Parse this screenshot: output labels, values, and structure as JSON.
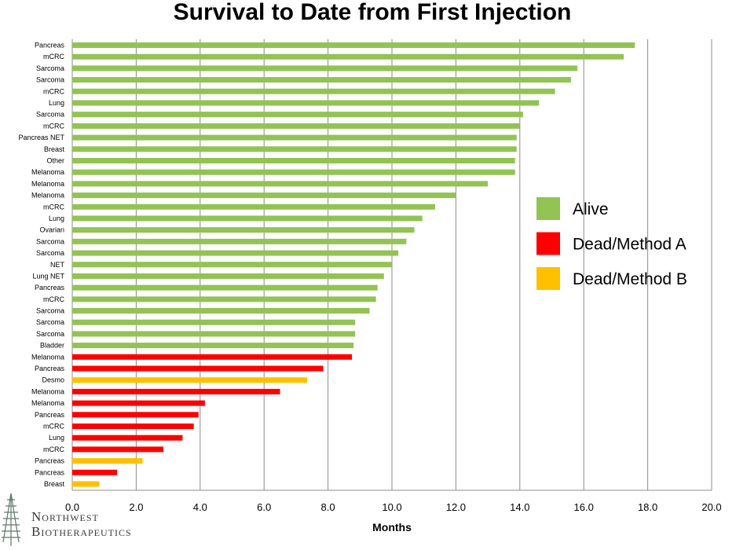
{
  "chart_data": {
    "type": "bar",
    "orientation": "horizontal",
    "title": "Survival to Date from First Injection",
    "xlabel": "Months",
    "ylabel": "",
    "xlim": [
      0,
      20
    ],
    "xticks": [
      "0.0",
      "2.0",
      "4.0",
      "6.0",
      "8.0",
      "10.0",
      "12.0",
      "14.0",
      "16.0",
      "18.0",
      "20.0"
    ],
    "grid": "vertical",
    "legend_position": "right",
    "legend": [
      {
        "label": "Alive",
        "color": "#92c353"
      },
      {
        "label": "Dead/Method A",
        "color": "#ff0000"
      },
      {
        "label": "Dead/Method B",
        "color": "#ffc000"
      }
    ],
    "bars": [
      {
        "label": "Pancreas",
        "value": 17.6,
        "status": "Alive"
      },
      {
        "label": "mCRC",
        "value": 17.25,
        "status": "Alive"
      },
      {
        "label": "Sarcoma",
        "value": 15.8,
        "status": "Alive"
      },
      {
        "label": "Sarcoma",
        "value": 15.6,
        "status": "Alive"
      },
      {
        "label": "mCRC",
        "value": 15.1,
        "status": "Alive"
      },
      {
        "label": "Lung",
        "value": 14.6,
        "status": "Alive"
      },
      {
        "label": "Sarcoma",
        "value": 14.1,
        "status": "Alive"
      },
      {
        "label": "mCRC",
        "value": 14.0,
        "status": "Alive"
      },
      {
        "label": "Pancreas NET",
        "value": 13.9,
        "status": "Alive"
      },
      {
        "label": "Breast",
        "value": 13.9,
        "status": "Alive"
      },
      {
        "label": "Other",
        "value": 13.85,
        "status": "Alive"
      },
      {
        "label": "Melanoma",
        "value": 13.85,
        "status": "Alive"
      },
      {
        "label": "Melanoma",
        "value": 13.0,
        "status": "Alive"
      },
      {
        "label": "Melanoma",
        "value": 12.0,
        "status": "Alive"
      },
      {
        "label": "mCRC",
        "value": 11.35,
        "status": "Alive"
      },
      {
        "label": "Lung",
        "value": 10.95,
        "status": "Alive"
      },
      {
        "label": "Ovarian",
        "value": 10.7,
        "status": "Alive"
      },
      {
        "label": "Sarcoma",
        "value": 10.45,
        "status": "Alive"
      },
      {
        "label": "Sarcoma",
        "value": 10.2,
        "status": "Alive"
      },
      {
        "label": "NET",
        "value": 10.0,
        "status": "Alive"
      },
      {
        "label": "Lung NET",
        "value": 9.75,
        "status": "Alive"
      },
      {
        "label": "Pancreas",
        "value": 9.55,
        "status": "Alive"
      },
      {
        "label": "mCRC",
        "value": 9.5,
        "status": "Alive"
      },
      {
        "label": "Sarcoma",
        "value": 9.3,
        "status": "Alive"
      },
      {
        "label": "Sarcoma",
        "value": 8.85,
        "status": "Alive"
      },
      {
        "label": "Sarcoma",
        "value": 8.85,
        "status": "Alive"
      },
      {
        "label": "Bladder",
        "value": 8.8,
        "status": "Alive"
      },
      {
        "label": "Melanoma",
        "value": 8.75,
        "status": "Dead/Method A"
      },
      {
        "label": "Pancreas",
        "value": 7.85,
        "status": "Dead/Method A"
      },
      {
        "label": "Desmo",
        "value": 7.35,
        "status": "Dead/Method B"
      },
      {
        "label": "Melanoma",
        "value": 6.5,
        "status": "Dead/Method A"
      },
      {
        "label": "Melanoma",
        "value": 4.15,
        "status": "Dead/Method A"
      },
      {
        "label": "Pancreas",
        "value": 3.95,
        "status": "Dead/Method A"
      },
      {
        "label": "mCRC",
        "value": 3.8,
        "status": "Dead/Method A"
      },
      {
        "label": "Lung",
        "value": 3.45,
        "status": "Dead/Method A"
      },
      {
        "label": "mCRC",
        "value": 2.85,
        "status": "Dead/Method A"
      },
      {
        "label": "Pancreas",
        "value": 2.2,
        "status": "Dead/Method B"
      },
      {
        "label": "Pancreas",
        "value": 1.4,
        "status": "Dead/Method A"
      },
      {
        "label": "Breast",
        "value": 0.85,
        "status": "Dead/Method B"
      }
    ]
  },
  "logo": {
    "line1": "Northwest",
    "line2": "Biotherapeutics"
  }
}
